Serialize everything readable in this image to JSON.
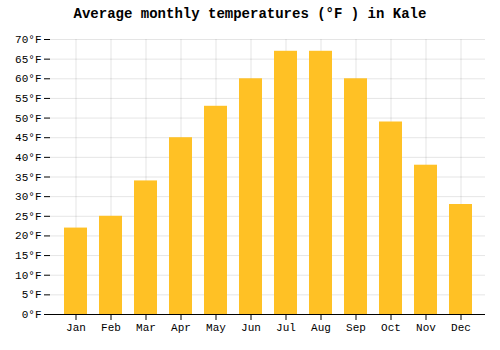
{
  "chart_data": {
    "type": "bar",
    "title": "Average monthly temperatures (°F ) in Kale",
    "categories": [
      "Jan",
      "Feb",
      "Mar",
      "Apr",
      "May",
      "Jun",
      "Jul",
      "Aug",
      "Sep",
      "Oct",
      "Nov",
      "Dec"
    ],
    "values": [
      22,
      25,
      34,
      45,
      53,
      60,
      67,
      67,
      60,
      49,
      38,
      28
    ],
    "color": "#FFC125",
    "ylim": [
      0,
      70
    ],
    "yticks": [
      {
        "value": 0,
        "label": "0°F"
      },
      {
        "value": 5,
        "label": "5°F"
      },
      {
        "value": 10,
        "label": "10°F"
      },
      {
        "value": 15,
        "label": "15°F"
      },
      {
        "value": 20,
        "label": "20°F"
      },
      {
        "value": 25,
        "label": "25°F"
      },
      {
        "value": 30,
        "label": "30°F"
      },
      {
        "value": 35,
        "label": "35°F"
      },
      {
        "value": 40,
        "label": "40°F"
      },
      {
        "value": 45,
        "label": "45°F"
      },
      {
        "value": 50,
        "label": "50°F"
      },
      {
        "value": 55,
        "label": "55°F"
      },
      {
        "value": 60,
        "label": "60°F"
      },
      {
        "value": 65,
        "label": "65°F"
      },
      {
        "value": 70,
        "label": "70°F"
      }
    ],
    "grid": true
  }
}
